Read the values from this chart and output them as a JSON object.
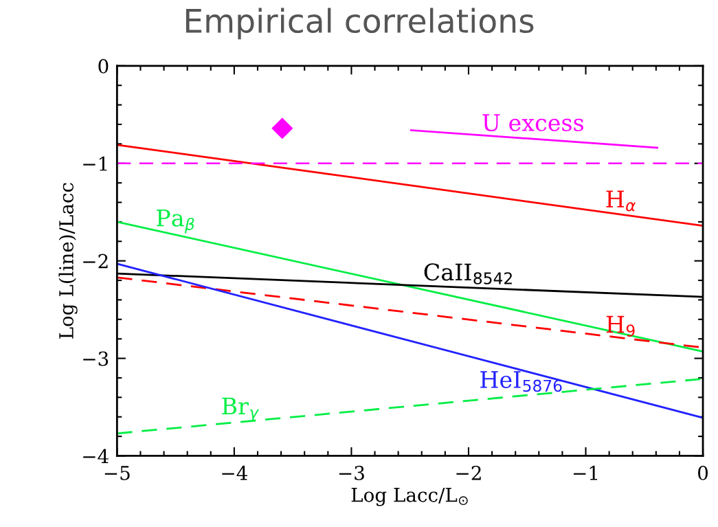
{
  "chart_data": {
    "type": "line",
    "title": "Empirical correlations",
    "xlabel": "Log Lacc/L$_{⊙}$",
    "ylabel": "Log L(line)/Lacc",
    "xlim": [
      -5,
      0
    ],
    "ylim": [
      -4,
      0
    ],
    "xticks": [
      -5,
      -4,
      -3,
      -2,
      -1,
      0
    ],
    "yticks": [
      -4,
      -3,
      -2,
      -1,
      0
    ],
    "grid": false,
    "legend": false,
    "marker": "none",
    "series": [
      {
        "name": "U excess",
        "color": "#ff00ff",
        "x": [
          -2.49,
          -0.39
        ],
        "values": [
          -0.66,
          -0.84
        ],
        "line_style": "solid"
      },
      {
        "color": "#ff00ff",
        "type": "scatter",
        "marker": "diamond",
        "x": [
          -3.59
        ],
        "values": [
          -0.64
        ]
      },
      {
        "name": "H$_{α}$",
        "color": "#ff0000",
        "x": [
          -5,
          0
        ],
        "values": [
          -0.81,
          -1.64
        ],
        "line_style": "solid"
      },
      {
        "name": "Pa$_{β}$",
        "color": "#00ee44",
        "x": [
          -5,
          0
        ],
        "values": [
          -1.6,
          -2.93
        ],
        "line_style": "solid"
      },
      {
        "name": "CaII$_{8542}$",
        "color": "#000000",
        "x": [
          -5,
          0
        ],
        "values": [
          -2.13,
          -2.37
        ],
        "line_style": "solid"
      },
      {
        "name": "H$_{9}$",
        "color": "#ff0000",
        "x": [
          -5,
          0
        ],
        "values": [
          -2.17,
          -2.89
        ],
        "line_style": "dashed"
      },
      {
        "name": "HeI$_{5876}$",
        "color": "#2222ff",
        "x": [
          -5,
          0
        ],
        "values": [
          -2.03,
          -3.61
        ],
        "line_style": "solid"
      },
      {
        "name": "Br$_{γ}$",
        "color": "#00ee44",
        "x": [
          -5,
          0
        ],
        "values": [
          -3.77,
          -3.21
        ],
        "line_style": "dashed"
      }
    ],
    "ref_lines": [
      {
        "axis": "y",
        "value": -1,
        "label": null,
        "color": "#ff00ff",
        "line_style": "dashed"
      }
    ]
  }
}
